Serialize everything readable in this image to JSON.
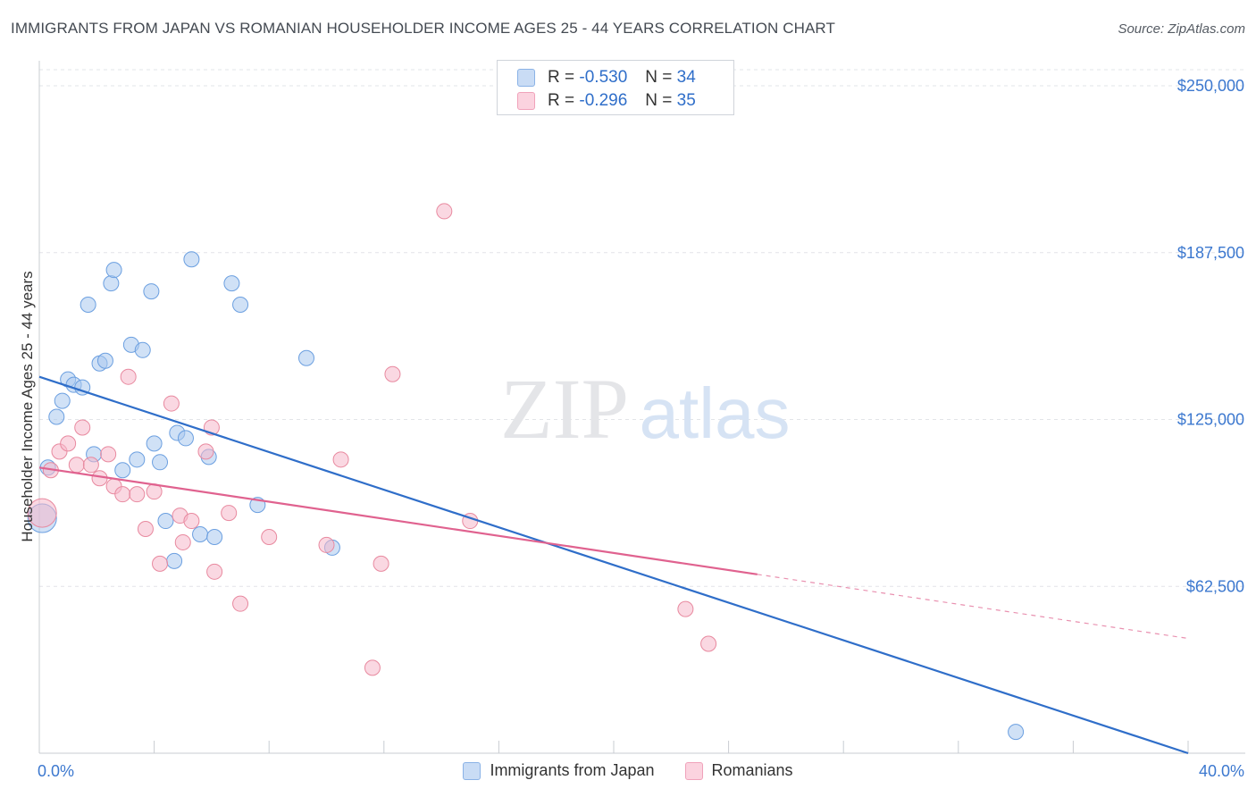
{
  "title": "IMMIGRANTS FROM JAPAN VS ROMANIAN HOUSEHOLDER INCOME AGES 25 - 44 YEARS CORRELATION CHART",
  "source": "Source: ZipAtlas.com",
  "watermark": {
    "zip": "ZIP",
    "atlas": "atlas"
  },
  "stats_legend": [
    {
      "r_label": "R =",
      "r_value": "-0.530",
      "n_label": "N =",
      "n_value": "34",
      "color": "#a9c8ef"
    },
    {
      "r_label": "R =",
      "r_value": "-0.296",
      "n_label": "N =",
      "n_value": "35",
      "color": "#f5b8cb"
    }
  ],
  "chart_data": {
    "type": "scatter",
    "title": "IMMIGRANTS FROM JAPAN VS ROMANIAN HOUSEHOLDER INCOME AGES 25 - 44 YEARS CORRELATION CHART",
    "xlabel": "",
    "ylabel": "Householder Income Ages 25 - 44 years",
    "xlim": [
      0,
      40
    ],
    "ylim": [
      0,
      250000
    ],
    "x_tick_labels": [
      "0.0%",
      "40.0%"
    ],
    "y_ticks": [
      62500,
      125000,
      187500,
      250000
    ],
    "y_tick_labels": [
      "$62,500",
      "$125,000",
      "$187,500",
      "$250,000"
    ],
    "grid": true,
    "legend_position": "bottom",
    "series": [
      {
        "name": "Immigrants from Japan",
        "color": "#a9c8ef",
        "stroke": "#6b9fe0",
        "line_color": "#2f6ec9",
        "trend": {
          "x0": 0,
          "y0": 141000,
          "x1": 40,
          "y1": 0
        },
        "points": [
          {
            "x": 0.1,
            "y": 88000,
            "size": 16
          },
          {
            "x": 0.3,
            "y": 107000
          },
          {
            "x": 0.6,
            "y": 126000
          },
          {
            "x": 0.8,
            "y": 132000
          },
          {
            "x": 1.0,
            "y": 140000
          },
          {
            "x": 1.2,
            "y": 138000
          },
          {
            "x": 1.5,
            "y": 137000
          },
          {
            "x": 1.7,
            "y": 168000
          },
          {
            "x": 1.9,
            "y": 112000
          },
          {
            "x": 2.1,
            "y": 146000
          },
          {
            "x": 2.3,
            "y": 147000
          },
          {
            "x": 2.5,
            "y": 176000
          },
          {
            "x": 2.6,
            "y": 181000
          },
          {
            "x": 2.9,
            "y": 106000
          },
          {
            "x": 3.2,
            "y": 153000
          },
          {
            "x": 3.4,
            "y": 110000
          },
          {
            "x": 3.6,
            "y": 151000
          },
          {
            "x": 3.9,
            "y": 173000
          },
          {
            "x": 4.0,
            "y": 116000
          },
          {
            "x": 4.2,
            "y": 109000
          },
          {
            "x": 4.4,
            "y": 87000
          },
          {
            "x": 4.7,
            "y": 72000
          },
          {
            "x": 4.8,
            "y": 120000
          },
          {
            "x": 5.1,
            "y": 118000
          },
          {
            "x": 5.3,
            "y": 185000
          },
          {
            "x": 5.6,
            "y": 82000
          },
          {
            "x": 5.9,
            "y": 111000
          },
          {
            "x": 6.1,
            "y": 81000
          },
          {
            "x": 6.7,
            "y": 176000
          },
          {
            "x": 7.0,
            "y": 168000
          },
          {
            "x": 7.6,
            "y": 93000
          },
          {
            "x": 9.3,
            "y": 148000
          },
          {
            "x": 10.2,
            "y": 77000
          },
          {
            "x": 34.0,
            "y": 8000
          }
        ]
      },
      {
        "name": "Romanians",
        "color": "#f5b8cb",
        "stroke": "#e8899f",
        "line_color": "#e0628f",
        "trend": {
          "x0": 0,
          "y0": 107000,
          "x1": 25,
          "y1": 67000
        },
        "trend_dashed": {
          "x0": 25,
          "y0": 67000,
          "x1": 40,
          "y1": 43000
        },
        "points": [
          {
            "x": 0.1,
            "y": 90000,
            "size": 16
          },
          {
            "x": 0.4,
            "y": 106000
          },
          {
            "x": 0.7,
            "y": 113000
          },
          {
            "x": 1.0,
            "y": 116000
          },
          {
            "x": 1.3,
            "y": 108000
          },
          {
            "x": 1.5,
            "y": 122000
          },
          {
            "x": 1.8,
            "y": 108000
          },
          {
            "x": 2.1,
            "y": 103000
          },
          {
            "x": 2.4,
            "y": 112000
          },
          {
            "x": 2.6,
            "y": 100000
          },
          {
            "x": 2.9,
            "y": 97000
          },
          {
            "x": 3.1,
            "y": 141000
          },
          {
            "x": 3.4,
            "y": 97000
          },
          {
            "x": 3.7,
            "y": 84000
          },
          {
            "x": 4.0,
            "y": 98000
          },
          {
            "x": 4.2,
            "y": 71000
          },
          {
            "x": 4.6,
            "y": 131000
          },
          {
            "x": 4.9,
            "y": 89000
          },
          {
            "x": 5.0,
            "y": 79000
          },
          {
            "x": 5.3,
            "y": 87000
          },
          {
            "x": 5.8,
            "y": 113000
          },
          {
            "x": 6.0,
            "y": 122000
          },
          {
            "x": 6.1,
            "y": 68000
          },
          {
            "x": 6.6,
            "y": 90000
          },
          {
            "x": 7.0,
            "y": 56000
          },
          {
            "x": 8.0,
            "y": 81000
          },
          {
            "x": 10.0,
            "y": 78000
          },
          {
            "x": 10.5,
            "y": 110000
          },
          {
            "x": 11.6,
            "y": 32000
          },
          {
            "x": 11.9,
            "y": 71000
          },
          {
            "x": 12.3,
            "y": 142000
          },
          {
            "x": 14.1,
            "y": 203000
          },
          {
            "x": 15.0,
            "y": 87000
          },
          {
            "x": 22.5,
            "y": 54000
          },
          {
            "x": 23.3,
            "y": 41000
          }
        ]
      }
    ]
  }
}
